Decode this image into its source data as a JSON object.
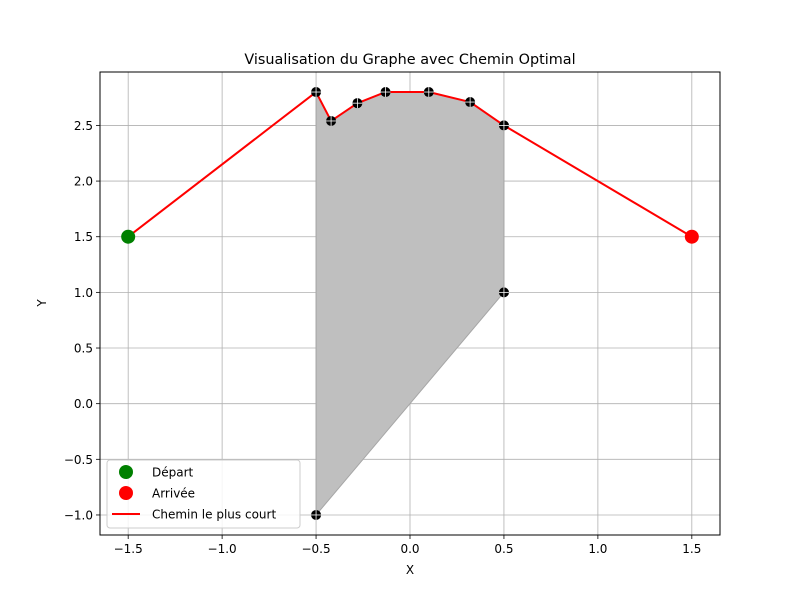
{
  "chart_data": {
    "type": "scatter",
    "title": "Visualisation du Graphe avec Chemin Optimal",
    "xlabel": "X",
    "ylabel": "Y",
    "xlim": [
      -1.65,
      1.65
    ],
    "ylim": [
      -1.18,
      2.98
    ],
    "grid": true,
    "legend_position": "lower-left",
    "xticks": [
      -1.5,
      -1.0,
      -0.5,
      0.0,
      0.5,
      1.0,
      1.5
    ],
    "xtick_labels": [
      "−1.5",
      "−1.0",
      "−0.5",
      "0.0",
      "0.5",
      "1.0",
      "1.5"
    ],
    "yticks": [
      -1.0,
      -0.5,
      0.0,
      0.5,
      1.0,
      1.5,
      2.0,
      2.5
    ],
    "ytick_labels": [
      "−1.0",
      "−0.5",
      "0.0",
      "0.5",
      "1.0",
      "1.5",
      "2.0",
      "2.5"
    ],
    "obstacle": {
      "color": "#bfbfbf",
      "edge_color": "#a6a6a6",
      "vertices": [
        {
          "x": -0.5,
          "y": 2.8
        },
        {
          "x": -0.42,
          "y": 2.54
        },
        {
          "x": -0.28,
          "y": 2.7
        },
        {
          "x": -0.13,
          "y": 2.8
        },
        {
          "x": 0.1,
          "y": 2.8
        },
        {
          "x": 0.32,
          "y": 2.71
        },
        {
          "x": 0.5,
          "y": 2.5
        },
        {
          "x": 0.5,
          "y": 1.0
        },
        {
          "x": -0.5,
          "y": -1.0
        }
      ]
    },
    "graph_nodes": {
      "color": "#000000",
      "points": [
        {
          "x": -0.5,
          "y": 2.8
        },
        {
          "x": -0.42,
          "y": 2.54
        },
        {
          "x": -0.28,
          "y": 2.7
        },
        {
          "x": -0.13,
          "y": 2.8
        },
        {
          "x": 0.1,
          "y": 2.8
        },
        {
          "x": 0.32,
          "y": 2.71
        },
        {
          "x": 0.5,
          "y": 2.5
        },
        {
          "x": 0.5,
          "y": 1.0
        },
        {
          "x": -0.5,
          "y": -1.0
        }
      ]
    },
    "series": [
      {
        "name": "Départ",
        "kind": "point",
        "color": "#008000",
        "points": [
          {
            "x": -1.5,
            "y": 1.5
          }
        ]
      },
      {
        "name": "Arrivée",
        "kind": "point",
        "color": "#ff0000",
        "points": [
          {
            "x": 1.5,
            "y": 1.5
          }
        ]
      },
      {
        "name": "Chemin le plus court",
        "kind": "line",
        "color": "#ff0000",
        "points": [
          {
            "x": -1.5,
            "y": 1.5
          },
          {
            "x": -0.5,
            "y": 2.8
          },
          {
            "x": -0.42,
            "y": 2.54
          },
          {
            "x": -0.28,
            "y": 2.7
          },
          {
            "x": -0.13,
            "y": 2.8
          },
          {
            "x": 0.1,
            "y": 2.8
          },
          {
            "x": 0.32,
            "y": 2.71
          },
          {
            "x": 0.5,
            "y": 2.5
          },
          {
            "x": 1.5,
            "y": 1.5
          }
        ]
      }
    ]
  }
}
